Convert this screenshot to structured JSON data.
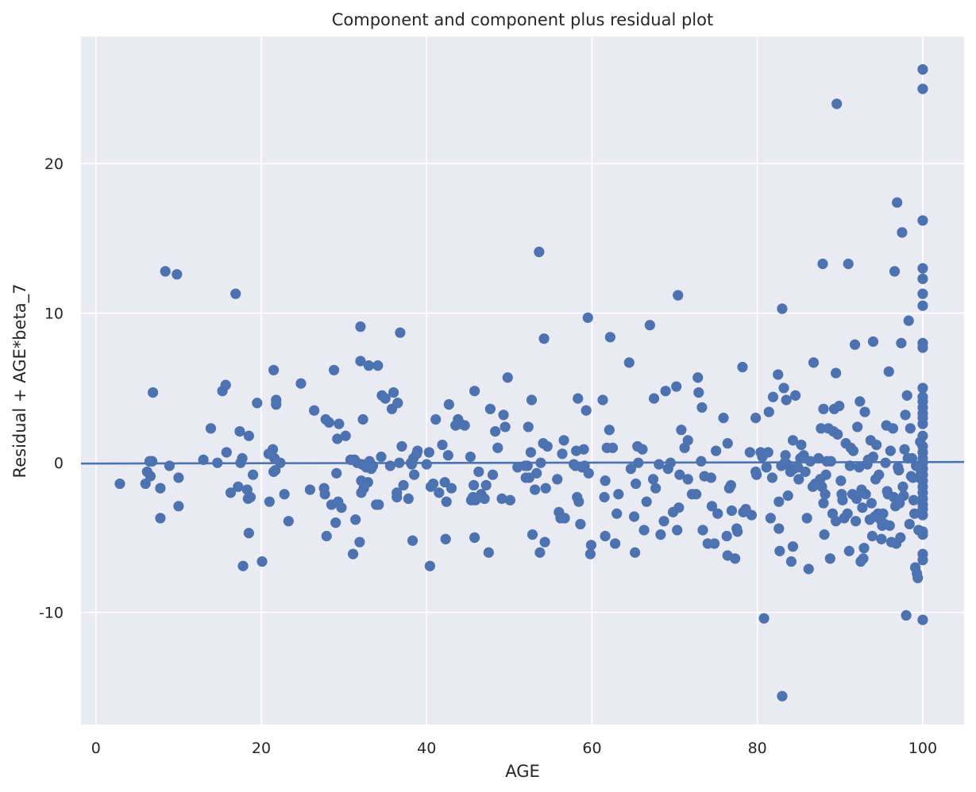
{
  "chart_data": {
    "type": "scatter",
    "title": "Component and component plus residual plot",
    "xlabel": "AGE",
    "ylabel": "Residual + AGE*beta_7",
    "xlim": [
      -1.8,
      105.0
    ],
    "ylim": [
      -17.5,
      28.5
    ],
    "xticks": [
      0,
      20,
      40,
      60,
      80,
      100
    ],
    "yticks": [
      -10,
      0,
      10,
      20
    ],
    "grid": true,
    "background": "#eaeaf2",
    "point_color": "#4c72b0",
    "fit_line": {
      "x": [
        -1.8,
        105.0
      ],
      "y": [
        -0.05,
        0.05
      ]
    },
    "points": [
      [
        2.9,
        -1.4
      ],
      [
        6.0,
        -1.4
      ],
      [
        6.2,
        -0.6
      ],
      [
        6.5,
        0.1
      ],
      [
        6.6,
        -0.9
      ],
      [
        6.8,
        0.1
      ],
      [
        6.9,
        4.7
      ],
      [
        7.8,
        -1.7
      ],
      [
        7.8,
        -3.7
      ],
      [
        8.4,
        12.8
      ],
      [
        8.9,
        -0.2
      ],
      [
        9.8,
        12.6
      ],
      [
        10.0,
        -1.0
      ],
      [
        10.0,
        -2.9
      ],
      [
        13.0,
        0.2
      ],
      [
        13.9,
        2.3
      ],
      [
        14.7,
        0.0
      ],
      [
        15.3,
        4.8
      ],
      [
        15.7,
        5.2
      ],
      [
        15.8,
        0.7
      ],
      [
        16.3,
        -2.0
      ],
      [
        16.9,
        11.3
      ],
      [
        17.2,
        -1.6
      ],
      [
        17.4,
        2.1
      ],
      [
        17.5,
        0.0
      ],
      [
        17.7,
        0.3
      ],
      [
        17.8,
        -6.9
      ],
      [
        18.3,
        -1.8
      ],
      [
        18.4,
        -2.4
      ],
      [
        18.5,
        1.8
      ],
      [
        18.5,
        -4.7
      ],
      [
        18.7,
        -2.3
      ],
      [
        19.0,
        -0.8
      ],
      [
        19.5,
        4.0
      ],
      [
        20.1,
        -6.6
      ],
      [
        20.9,
        0.6
      ],
      [
        21.0,
        -2.6
      ],
      [
        21.2,
        0.6
      ],
      [
        21.4,
        0.9
      ],
      [
        21.5,
        -0.6
      ],
      [
        21.5,
        6.2
      ],
      [
        21.6,
        0.3
      ],
      [
        21.7,
        -0.5
      ],
      [
        21.8,
        4.2
      ],
      [
        21.8,
        3.9
      ],
      [
        22.3,
        0.0
      ],
      [
        22.8,
        -2.1
      ],
      [
        23.3,
        -3.9
      ],
      [
        24.8,
        5.3
      ],
      [
        25.9,
        -1.8
      ],
      [
        26.4,
        3.5
      ],
      [
        27.6,
        -1.7
      ],
      [
        27.7,
        -2.1
      ],
      [
        27.8,
        2.9
      ],
      [
        27.9,
        -4.9
      ],
      [
        28.2,
        2.7
      ],
      [
        28.5,
        -2.8
      ],
      [
        28.8,
        6.2
      ],
      [
        29.0,
        -4.0
      ],
      [
        29.1,
        -0.7
      ],
      [
        29.2,
        1.6
      ],
      [
        29.3,
        -2.6
      ],
      [
        29.4,
        2.6
      ],
      [
        29.7,
        -3.0
      ],
      [
        30.2,
        1.8
      ],
      [
        30.8,
        0.2
      ],
      [
        31.1,
        -6.1
      ],
      [
        31.3,
        0.2
      ],
      [
        31.4,
        -3.8
      ],
      [
        31.6,
        0.0
      ],
      [
        31.9,
        -5.3
      ],
      [
        32.0,
        9.1
      ],
      [
        32.0,
        6.8
      ],
      [
        32.1,
        -1.2
      ],
      [
        32.1,
        -2.0
      ],
      [
        32.2,
        -0.1
      ],
      [
        32.3,
        2.9
      ],
      [
        32.4,
        -1.7
      ],
      [
        32.7,
        -0.3
      ],
      [
        32.9,
        -1.3
      ],
      [
        33.0,
        6.5
      ],
      [
        33.1,
        0.1
      ],
      [
        33.3,
        -0.4
      ],
      [
        33.5,
        -0.2
      ],
      [
        33.9,
        -2.8
      ],
      [
        34.1,
        6.5
      ],
      [
        34.2,
        -2.8
      ],
      [
        34.5,
        0.4
      ],
      [
        34.6,
        4.5
      ],
      [
        35.0,
        4.3
      ],
      [
        35.6,
        -0.2
      ],
      [
        35.8,
        3.6
      ],
      [
        36.0,
        4.7
      ],
      [
        36.4,
        -2.0
      ],
      [
        36.4,
        -2.3
      ],
      [
        36.5,
        4.0
      ],
      [
        36.7,
        0.0
      ],
      [
        36.8,
        8.7
      ],
      [
        37.0,
        1.1
      ],
      [
        37.2,
        -1.5
      ],
      [
        37.8,
        -2.4
      ],
      [
        38.1,
        0.0
      ],
      [
        38.2,
        -0.1
      ],
      [
        38.3,
        -5.2
      ],
      [
        38.4,
        0.3
      ],
      [
        38.5,
        -0.8
      ],
      [
        38.8,
        0.6
      ],
      [
        38.9,
        0.8
      ],
      [
        40.0,
        -0.1
      ],
      [
        40.3,
        0.7
      ],
      [
        40.4,
        -6.9
      ],
      [
        40.5,
        -1.6
      ],
      [
        40.8,
        -1.4
      ],
      [
        41.1,
        2.9
      ],
      [
        41.5,
        -2.0
      ],
      [
        41.9,
        1.2
      ],
      [
        42.2,
        -1.3
      ],
      [
        42.3,
        -5.1
      ],
      [
        42.4,
        -2.6
      ],
      [
        42.6,
        0.5
      ],
      [
        42.7,
        3.9
      ],
      [
        43.0,
        -1.7
      ],
      [
        43.5,
        2.5
      ],
      [
        43.8,
        2.9
      ],
      [
        44.1,
        2.6
      ],
      [
        44.6,
        2.5
      ],
      [
        45.3,
        0.4
      ],
      [
        45.4,
        -2.5
      ],
      [
        45.6,
        -2.3
      ],
      [
        45.7,
        -1.5
      ],
      [
        45.8,
        4.8
      ],
      [
        45.8,
        -5.0
      ],
      [
        45.9,
        -2.5
      ],
      [
        46.3,
        -0.6
      ],
      [
        46.6,
        -2.1
      ],
      [
        47.0,
        -2.4
      ],
      [
        47.2,
        -1.5
      ],
      [
        47.5,
        -6.0
      ],
      [
        47.7,
        3.6
      ],
      [
        48.0,
        -0.8
      ],
      [
        48.3,
        2.1
      ],
      [
        48.6,
        1.0
      ],
      [
        49.1,
        -2.4
      ],
      [
        49.3,
        3.2
      ],
      [
        49.5,
        2.4
      ],
      [
        49.8,
        5.7
      ],
      [
        50.1,
        -2.5
      ],
      [
        51.0,
        -0.3
      ],
      [
        51.9,
        -0.2
      ],
      [
        52.0,
        -1.0
      ],
      [
        52.2,
        -0.2
      ],
      [
        52.3,
        2.4
      ],
      [
        52.4,
        -1.0
      ],
      [
        52.6,
        0.7
      ],
      [
        52.7,
        4.2
      ],
      [
        52.8,
        -4.8
      ],
      [
        53.1,
        -1.8
      ],
      [
        53.3,
        -0.7
      ],
      [
        53.6,
        14.1
      ],
      [
        53.7,
        -6.0
      ],
      [
        53.8,
        0.0
      ],
      [
        54.1,
        1.3
      ],
      [
        54.2,
        8.3
      ],
      [
        54.3,
        -5.3
      ],
      [
        54.4,
        -1.7
      ],
      [
        54.6,
        1.1
      ],
      [
        55.8,
        -1.1
      ],
      [
        56.0,
        -3.3
      ],
      [
        56.2,
        -3.7
      ],
      [
        56.4,
        0.6
      ],
      [
        56.6,
        1.5
      ],
      [
        56.7,
        -3.7
      ],
      [
        57.8,
        -0.1
      ],
      [
        58.0,
        -0.2
      ],
      [
        58.1,
        0.8
      ],
      [
        58.2,
        -2.3
      ],
      [
        58.3,
        4.3
      ],
      [
        58.4,
        -2.6
      ],
      [
        58.6,
        -4.1
      ],
      [
        58.8,
        -0.3
      ],
      [
        59.0,
        0.9
      ],
      [
        59.1,
        -0.2
      ],
      [
        59.3,
        3.5
      ],
      [
        59.5,
        9.7
      ],
      [
        59.6,
        -0.7
      ],
      [
        59.8,
        -6.1
      ],
      [
        59.9,
        -5.5
      ],
      [
        61.3,
        4.2
      ],
      [
        61.5,
        -2.3
      ],
      [
        61.6,
        -4.9
      ],
      [
        61.6,
        -1.2
      ],
      [
        61.8,
        1.0
      ],
      [
        62.1,
        2.2
      ],
      [
        62.2,
        8.4
      ],
      [
        62.5,
        1.0
      ],
      [
        62.8,
        -5.4
      ],
      [
        63.0,
        -3.4
      ],
      [
        63.2,
        -2.1
      ],
      [
        64.5,
        6.7
      ],
      [
        64.7,
        -0.4
      ],
      [
        65.1,
        -3.6
      ],
      [
        65.2,
        -6.0
      ],
      [
        65.3,
        -1.4
      ],
      [
        65.5,
        1.1
      ],
      [
        65.6,
        0.0
      ],
      [
        66.1,
        0.9
      ],
      [
        66.3,
        -4.5
      ],
      [
        66.6,
        -2.6
      ],
      [
        67.0,
        9.2
      ],
      [
        67.4,
        -1.1
      ],
      [
        67.5,
        4.3
      ],
      [
        67.7,
        -1.7
      ],
      [
        68.1,
        -0.1
      ],
      [
        68.3,
        -4.8
      ],
      [
        68.7,
        -3.9
      ],
      [
        68.9,
        4.8
      ],
      [
        69.2,
        -0.4
      ],
      [
        69.5,
        0.0
      ],
      [
        69.8,
        -3.3
      ],
      [
        70.2,
        5.1
      ],
      [
        70.3,
        -4.5
      ],
      [
        70.4,
        11.2
      ],
      [
        70.5,
        -3.0
      ],
      [
        70.6,
        -0.8
      ],
      [
        70.8,
        2.2
      ],
      [
        71.2,
        1.0
      ],
      [
        71.6,
        -1.1
      ],
      [
        71.6,
        1.5
      ],
      [
        72.1,
        -2.1
      ],
      [
        72.6,
        -2.1
      ],
      [
        72.8,
        5.7
      ],
      [
        72.9,
        4.7
      ],
      [
        73.2,
        0.1
      ],
      [
        73.3,
        3.7
      ],
      [
        73.4,
        -4.5
      ],
      [
        73.6,
        -0.9
      ],
      [
        74.0,
        -5.4
      ],
      [
        74.4,
        -1.0
      ],
      [
        74.5,
        -2.9
      ],
      [
        74.8,
        -5.4
      ],
      [
        75.0,
        0.8
      ],
      [
        75.2,
        -3.4
      ],
      [
        75.9,
        3.0
      ],
      [
        76.3,
        -4.9
      ],
      [
        76.4,
        1.3
      ],
      [
        76.4,
        -6.2
      ],
      [
        76.6,
        -1.7
      ],
      [
        76.8,
        -1.5
      ],
      [
        76.9,
        -3.2
      ],
      [
        77.3,
        -6.4
      ],
      [
        77.5,
        -4.4
      ],
      [
        77.6,
        -4.6
      ],
      [
        78.2,
        6.4
      ],
      [
        78.3,
        -3.3
      ],
      [
        78.6,
        -3.1
      ],
      [
        79.1,
        0.7
      ],
      [
        79.3,
        -3.5
      ],
      [
        79.8,
        -0.6
      ],
      [
        79.8,
        3.0
      ],
      [
        79.9,
        -0.8
      ],
      [
        80.4,
        0.7
      ],
      [
        80.6,
        0.4
      ],
      [
        80.8,
        -10.4
      ],
      [
        81.1,
        -0.3
      ],
      [
        81.3,
        0.7
      ],
      [
        81.4,
        3.4
      ],
      [
        81.6,
        -3.7
      ],
      [
        81.8,
        -1.0
      ],
      [
        81.9,
        4.4
      ],
      [
        82.5,
        5.9
      ],
      [
        82.6,
        -2.6
      ],
      [
        82.6,
        -4.4
      ],
      [
        82.7,
        -5.9
      ],
      [
        82.9,
        -0.2
      ],
      [
        83.0,
        10.3
      ],
      [
        83.0,
        -15.6
      ],
      [
        83.2,
        5.0
      ],
      [
        83.3,
        0.0
      ],
      [
        83.4,
        0.5
      ],
      [
        83.5,
        4.2
      ],
      [
        83.6,
        -0.1
      ],
      [
        83.7,
        -2.2
      ],
      [
        84.0,
        -0.6
      ],
      [
        84.1,
        -6.6
      ],
      [
        84.3,
        -5.6
      ],
      [
        84.3,
        1.5
      ],
      [
        84.4,
        -0.4
      ],
      [
        84.6,
        4.5
      ],
      [
        84.9,
        -0.3
      ],
      [
        85.0,
        -1.1
      ],
      [
        85.2,
        0.3
      ],
      [
        85.3,
        1.2
      ],
      [
        85.6,
        0.5
      ],
      [
        85.8,
        -0.6
      ],
      [
        86.0,
        -3.7
      ],
      [
        86.2,
        -7.1
      ],
      [
        86.4,
        0.1
      ],
      [
        86.7,
        -1.6
      ],
      [
        86.8,
        6.7
      ],
      [
        87.0,
        -1.4
      ],
      [
        87.4,
        0.3
      ],
      [
        87.6,
        -1.1
      ],
      [
        87.7,
        2.3
      ],
      [
        87.8,
        -1.6
      ],
      [
        87.9,
        13.3
      ],
      [
        88.0,
        -2.7
      ],
      [
        88.0,
        3.6
      ],
      [
        88.1,
        -4.8
      ],
      [
        88.2,
        -2.1
      ],
      [
        88.3,
        -0.8
      ],
      [
        88.4,
        0.1
      ],
      [
        88.6,
        2.3
      ],
      [
        88.8,
        -6.4
      ],
      [
        88.9,
        0.1
      ],
      [
        89.1,
        -3.4
      ],
      [
        89.2,
        2.1
      ],
      [
        89.3,
        3.6
      ],
      [
        89.5,
        -3.9
      ],
      [
        89.5,
        6.0
      ],
      [
        89.6,
        24.0
      ],
      [
        89.7,
        1.9
      ],
      [
        89.9,
        3.8
      ],
      [
        90.1,
        -1.2
      ],
      [
        90.2,
        -2.1
      ],
      [
        90.3,
        -2.5
      ],
      [
        90.5,
        -3.7
      ],
      [
        90.7,
        1.3
      ],
      [
        90.9,
        -3.4
      ],
      [
        91.0,
        13.3
      ],
      [
        91.1,
        -5.9
      ],
      [
        91.2,
        -0.2
      ],
      [
        91.3,
        1.0
      ],
      [
        91.5,
        -2.1
      ],
      [
        91.6,
        0.8
      ],
      [
        91.8,
        7.9
      ],
      [
        91.9,
        -3.9
      ],
      [
        92.0,
        -2.4
      ],
      [
        92.1,
        2.4
      ],
      [
        92.3,
        -0.3
      ],
      [
        92.4,
        4.1
      ],
      [
        92.5,
        -6.6
      ],
      [
        92.6,
        -1.8
      ],
      [
        92.7,
        -3.0
      ],
      [
        92.8,
        -6.4
      ],
      [
        92.9,
        -5.7
      ],
      [
        93.0,
        3.4
      ],
      [
        93.1,
        -2.1
      ],
      [
        93.3,
        -0.1
      ],
      [
        93.4,
        0.2
      ],
      [
        93.6,
        -3.8
      ],
      [
        93.7,
        1.5
      ],
      [
        93.8,
        -2.7
      ],
      [
        93.9,
        -4.9
      ],
      [
        94.0,
        0.4
      ],
      [
        94.0,
        8.1
      ],
      [
        94.2,
        -3.6
      ],
      [
        94.3,
        -1.1
      ],
      [
        94.4,
        1.2
      ],
      [
        94.6,
        -3.4
      ],
      [
        94.7,
        -0.8
      ],
      [
        94.9,
        -3.8
      ],
      [
        95.0,
        -5.1
      ],
      [
        95.1,
        -4.2
      ],
      [
        95.2,
        -3.4
      ],
      [
        95.4,
        -4.1
      ],
      [
        95.5,
        0.0
      ],
      [
        95.6,
        2.5
      ],
      [
        95.7,
        -1.9
      ],
      [
        95.8,
        -2.1
      ],
      [
        95.9,
        6.1
      ],
      [
        96.0,
        -4.2
      ],
      [
        96.1,
        0.8
      ],
      [
        96.2,
        -5.3
      ],
      [
        96.4,
        2.3
      ],
      [
        96.5,
        -2.3
      ],
      [
        96.6,
        12.8
      ],
      [
        96.7,
        -2.9
      ],
      [
        96.8,
        -5.4
      ],
      [
        96.9,
        17.4
      ],
      [
        97.0,
        -0.3
      ],
      [
        97.1,
        -0.5
      ],
      [
        97.2,
        -2.7
      ],
      [
        97.3,
        -5.0
      ],
      [
        97.4,
        8.0
      ],
      [
        97.5,
        15.4
      ],
      [
        97.6,
        -1.6
      ],
      [
        97.7,
        -2.2
      ],
      [
        97.8,
        0.9
      ],
      [
        97.9,
        3.2
      ],
      [
        98.0,
        -10.2
      ],
      [
        98.1,
        4.5
      ],
      [
        98.2,
        0.3
      ],
      [
        98.3,
        9.5
      ],
      [
        98.4,
        -4.1
      ],
      [
        98.5,
        2.3
      ],
      [
        98.6,
        -0.9
      ],
      [
        98.7,
        0.3
      ],
      [
        98.8,
        -1.0
      ],
      [
        98.9,
        -2.5
      ],
      [
        99.0,
        -3.4
      ],
      [
        99.1,
        -7.0
      ],
      [
        99.2,
        -0.2
      ],
      [
        99.3,
        -7.4
      ],
      [
        99.4,
        -7.7
      ],
      [
        99.5,
        -4.5
      ],
      [
        99.6,
        -1.0
      ],
      [
        99.7,
        1.4
      ],
      [
        99.8,
        -0.6
      ],
      [
        100.0,
        26.3
      ],
      [
        100.0,
        25.0
      ],
      [
        100.0,
        16.2
      ],
      [
        100.0,
        13.0
      ],
      [
        100.0,
        12.3
      ],
      [
        100.0,
        11.3
      ],
      [
        100.0,
        10.5
      ],
      [
        100.0,
        8.0
      ],
      [
        100.0,
        7.7
      ],
      [
        100.0,
        5.0
      ],
      [
        100.0,
        4.4
      ],
      [
        100.0,
        4.1
      ],
      [
        100.0,
        3.7
      ],
      [
        100.0,
        3.3
      ],
      [
        100.0,
        3.0
      ],
      [
        100.0,
        2.6
      ],
      [
        100.0,
        1.8
      ],
      [
        100.0,
        1.1
      ],
      [
        100.0,
        0.7
      ],
      [
        100.0,
        0.3
      ],
      [
        100.0,
        0.0
      ],
      [
        100.0,
        -0.4
      ],
      [
        100.0,
        -0.8
      ],
      [
        100.0,
        -1.2
      ],
      [
        100.0,
        -1.6
      ],
      [
        100.0,
        -2.0
      ],
      [
        100.0,
        -2.4
      ],
      [
        100.0,
        -2.8
      ],
      [
        100.0,
        -3.1
      ],
      [
        100.0,
        -3.5
      ],
      [
        100.0,
        -4.6
      ],
      [
        100.0,
        -4.8
      ],
      [
        100.0,
        -6.1
      ],
      [
        100.0,
        -6.5
      ],
      [
        100.0,
        -10.5
      ]
    ]
  }
}
